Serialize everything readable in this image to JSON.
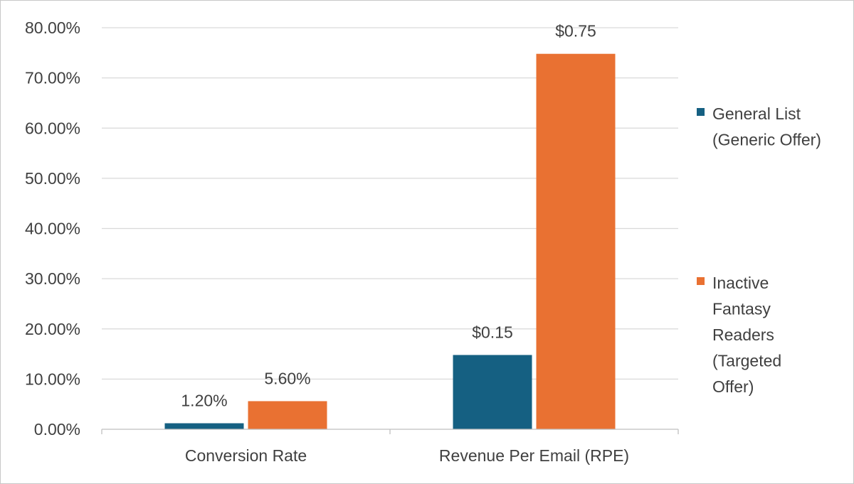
{
  "chart_data": {
    "type": "bar",
    "title": "",
    "xlabel": "",
    "ylabel": "",
    "ylim": [
      0,
      80
    ],
    "y_ticks": [
      0,
      10,
      20,
      30,
      40,
      50,
      60,
      70,
      80
    ],
    "y_tick_labels": [
      "0.00%",
      "10.00%",
      "20.00%",
      "30.00%",
      "40.00%",
      "50.00%",
      "60.00%",
      "70.00%",
      "80.00%"
    ],
    "grid": true,
    "legend_position": "right",
    "categories": [
      "Conversion Rate",
      "Revenue Per Email (RPE)"
    ],
    "series": [
      {
        "name": "General List (Generic Offer)",
        "legend_lines": [
          "General List",
          "(Generic Offer)"
        ],
        "color": "#156082",
        "values": [
          1.2,
          14.8
        ],
        "labels": [
          "1.20%",
          "$0.15"
        ]
      },
      {
        "name": "Inactive Fantasy Readers (Targeted Offer)",
        "legend_lines": [
          "Inactive",
          "Fantasy",
          "Readers",
          "(Targeted",
          "Offer)"
        ],
        "color": "#E97132",
        "values": [
          5.6,
          74.8
        ],
        "labels": [
          "5.60%",
          "$0.75"
        ]
      }
    ]
  }
}
